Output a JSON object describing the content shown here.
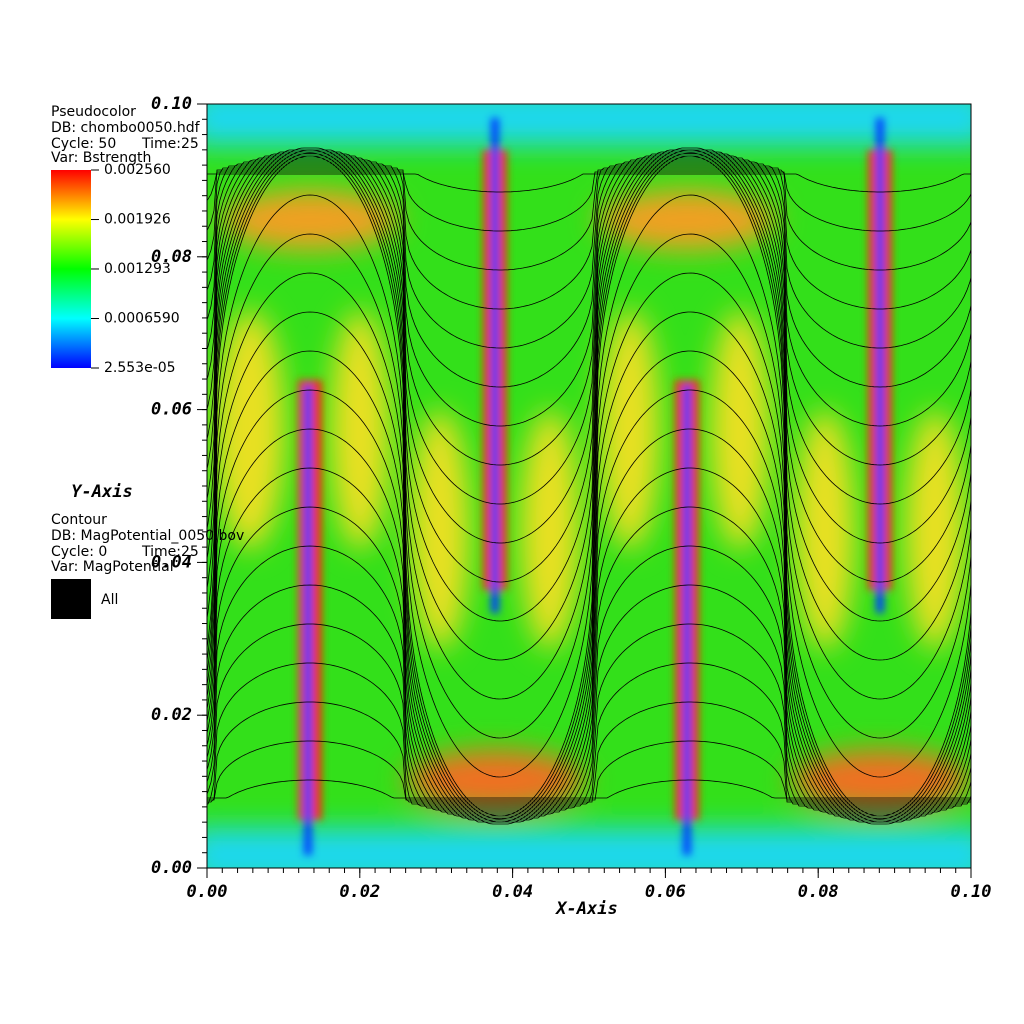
{
  "chart_data": {
    "type": "pseudocolor",
    "xlabel": "X-Axis",
    "ylabel": "Y-Axis",
    "xlim": [
      0,
      0.1
    ],
    "ylim": [
      0,
      0.1
    ],
    "xticks": [
      {
        "value": 0,
        "label": "0.00"
      },
      {
        "value": 0.02,
        "label": "0.02"
      },
      {
        "value": 0.04,
        "label": "0.04"
      },
      {
        "value": 0.06,
        "label": "0.06"
      },
      {
        "value": 0.08,
        "label": "0.08"
      },
      {
        "value": 0.1,
        "label": "0.10"
      }
    ],
    "yticks": [
      {
        "value": 0,
        "label": "0.00"
      },
      {
        "value": 0.02,
        "label": "0.02"
      },
      {
        "value": 0.04,
        "label": "0.04"
      },
      {
        "value": 0.06,
        "label": "0.06"
      },
      {
        "value": 0.08,
        "label": "0.08"
      },
      {
        "value": 0.1,
        "label": "0.10"
      }
    ],
    "colorbar": {
      "lim": [
        2.553e-05,
        0.00256
      ],
      "ticks": [
        {
          "value": 0.00256,
          "label": "0.002560"
        },
        {
          "value": 0.001926,
          "label": "0.001926"
        },
        {
          "value": 0.001293,
          "label": "0.001293"
        },
        {
          "value": 0.000659,
          "label": "0.0006590"
        },
        {
          "value": 2.553e-05,
          "label": "2.553e-05"
        }
      ]
    },
    "legends": [
      {
        "plot": "Pseudocolor",
        "db": "DB: chombo0050.hdf",
        "cycle": "Cycle: 50",
        "time": "Time:25",
        "var": "Var: Bstrength"
      },
      {
        "plot": "Contour",
        "db": "DB: MagPotential_0050.bov",
        "cycle": "Cycle: 0",
        "time": "Time:25",
        "var": "Var: MagPotential",
        "entry": "All"
      }
    ]
  }
}
